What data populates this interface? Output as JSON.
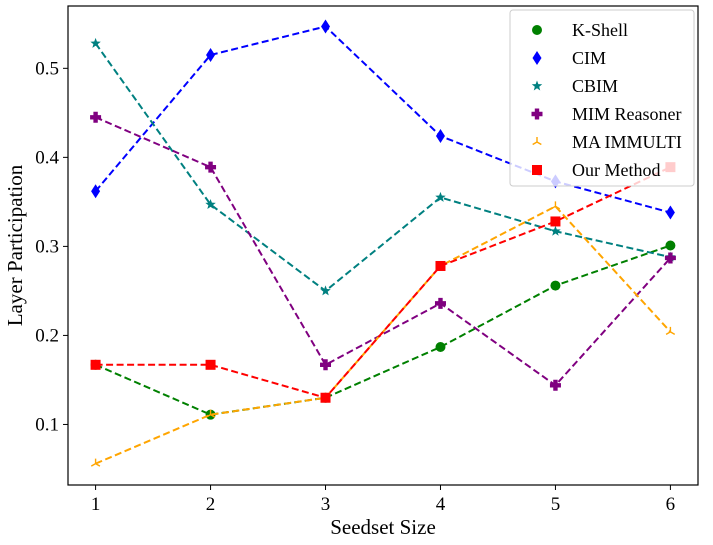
{
  "chart_data": {
    "type": "line",
    "title": "",
    "xlabel": "Seedset Size",
    "ylabel": "Layer Participation",
    "x": [
      1,
      2,
      3,
      4,
      5,
      6
    ],
    "xticks": [
      "1",
      "2",
      "3",
      "4",
      "5",
      "6"
    ],
    "yticks": [
      "0.1",
      "0.2",
      "0.3",
      "0.4",
      "0.5"
    ],
    "xlim": [
      0.76,
      6.24
    ],
    "ylim": [
      0.032,
      0.57
    ],
    "grid": false,
    "legend_position": "top-right",
    "series": [
      {
        "name": "K-Shell",
        "color": "#008000",
        "marker": "circle",
        "values": [
          0.167,
          0.111,
          0.13,
          0.187,
          0.256,
          0.301
        ]
      },
      {
        "name": "CIM",
        "color": "#0000ff",
        "marker": "diamond",
        "values": [
          0.362,
          0.515,
          0.547,
          0.424,
          0.373,
          0.338
        ]
      },
      {
        "name": "CBIM",
        "color": "#008080",
        "marker": "star",
        "values": [
          0.528,
          0.347,
          0.25,
          0.355,
          0.317,
          0.288
        ]
      },
      {
        "name": "MIM Reasoner",
        "color": "#800080",
        "marker": "plus",
        "values": [
          0.445,
          0.389,
          0.167,
          0.236,
          0.144,
          0.287
        ]
      },
      {
        "name": "MA IMMULTI",
        "color": "#ffa500",
        "marker": "tri",
        "values": [
          0.056,
          0.111,
          0.13,
          0.278,
          0.345,
          0.204
        ]
      },
      {
        "name": "Our Method",
        "color": "#ff0000",
        "marker": "square",
        "values": [
          0.167,
          0.167,
          0.13,
          0.278,
          0.328,
          0.389
        ]
      }
    ]
  }
}
